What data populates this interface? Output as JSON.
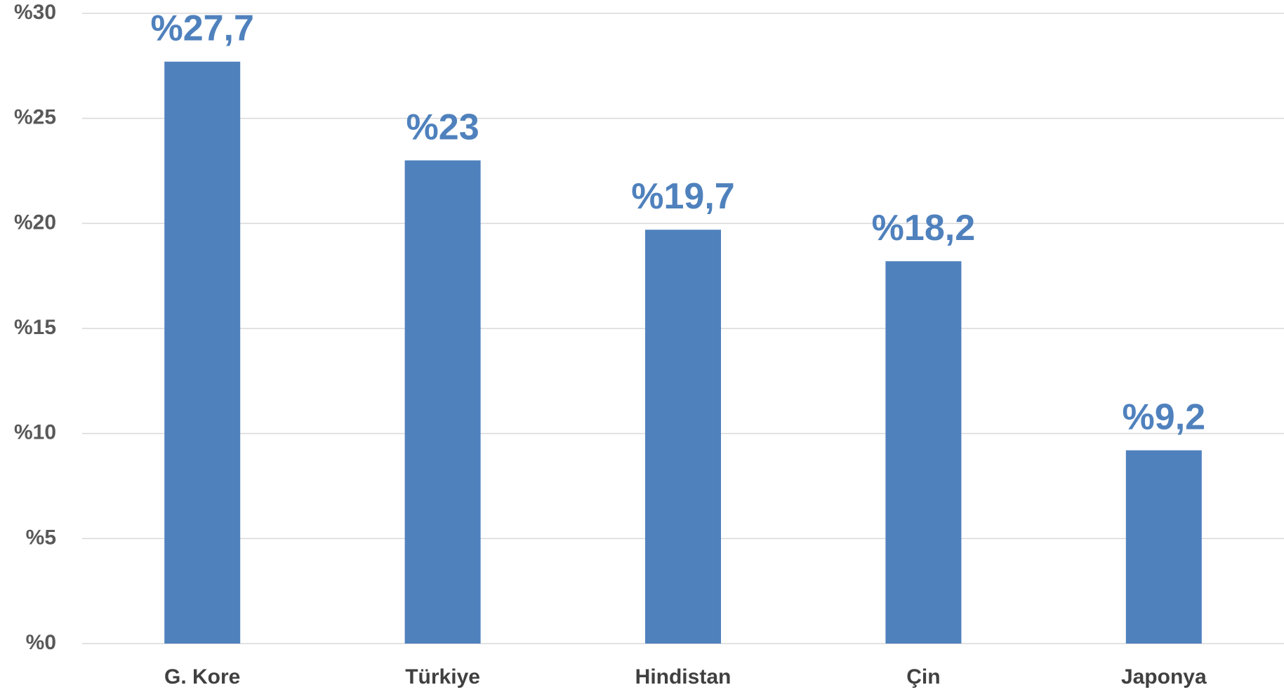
{
  "chart_data": {
    "type": "bar",
    "categories": [
      "G. Kore",
      "Türkiye",
      "Hindistan",
      "Çin",
      "Japonya"
    ],
    "values": [
      27.7,
      23,
      19.7,
      18.2,
      9.2
    ],
    "value_labels": [
      "%27,7",
      "%23",
      "%19,7",
      "%18,2",
      "%9,2"
    ],
    "color": "#4f81bd",
    "ylim": [
      0,
      30
    ],
    "yticks": [
      {
        "value": 0,
        "label": "%0"
      },
      {
        "value": 5,
        "label": "%5"
      },
      {
        "value": 10,
        "label": "%10"
      },
      {
        "value": 15,
        "label": "%15"
      },
      {
        "value": 20,
        "label": "%20"
      },
      {
        "value": 25,
        "label": "%25"
      },
      {
        "value": 30,
        "label": "%30"
      }
    ],
    "grid": true
  }
}
